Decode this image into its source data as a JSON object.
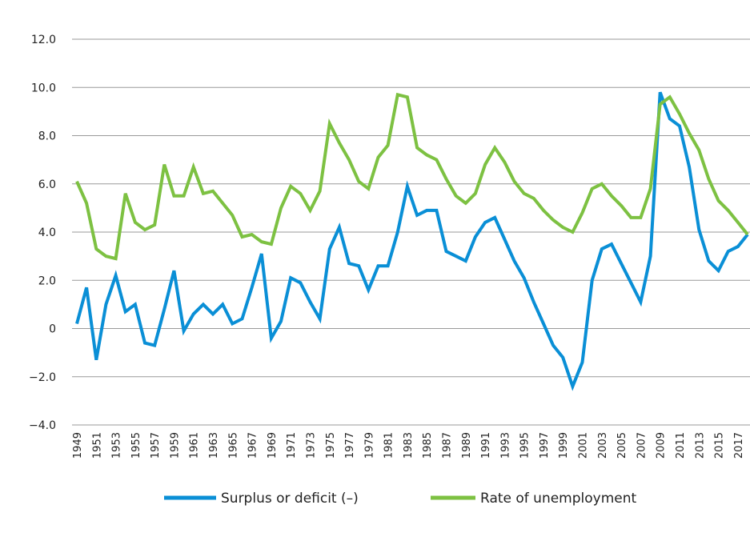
{
  "chart_data": {
    "type": "line",
    "title": "",
    "xlabel": "",
    "ylabel": "",
    "ylim": [
      -4,
      12
    ],
    "yticks": [
      "12.0",
      "10.0",
      "8.0",
      "6.0",
      "4.0",
      "2.0",
      "0",
      "−2.0",
      "−4.0"
    ],
    "ytick_values": [
      12,
      10,
      8,
      6,
      4,
      2,
      0,
      -2,
      -4
    ],
    "grid": true,
    "legend": "bottom",
    "x": [
      1949,
      1950,
      1951,
      1952,
      1953,
      1954,
      1955,
      1956,
      1957,
      1958,
      1959,
      1960,
      1961,
      1962,
      1963,
      1964,
      1965,
      1966,
      1967,
      1968,
      1969,
      1970,
      1971,
      1972,
      1973,
      1974,
      1975,
      1976,
      1977,
      1978,
      1979,
      1980,
      1981,
      1982,
      1983,
      1984,
      1985,
      1986,
      1987,
      1988,
      1989,
      1990,
      1991,
      1992,
      1993,
      1994,
      1995,
      1996,
      1997,
      1998,
      1999,
      2000,
      2001,
      2002,
      2003,
      2004,
      2005,
      2006,
      2007,
      2008,
      2009,
      2010,
      2011,
      2012,
      2013,
      2014,
      2015,
      2016,
      2017,
      2018
    ],
    "xtick_labels": [
      "1949",
      "1951",
      "1953",
      "1955",
      "1957",
      "1959",
      "1961",
      "1963",
      "1965",
      "1967",
      "1969",
      "1971",
      "1973",
      "1975",
      "1977",
      "1979",
      "1981",
      "1983",
      "1985",
      "1987",
      "1989",
      "1991",
      "1993",
      "1995",
      "1997",
      "1999",
      "2001",
      "2003",
      "2005",
      "2007",
      "2009",
      "2011",
      "2013",
      "2015",
      "2017"
    ],
    "series": [
      {
        "name": "Surplus or deficit (–)",
        "color": "#0a8fd6",
        "values": [
          0.2,
          1.7,
          -1.3,
          1.0,
          2.2,
          0.7,
          1.0,
          -0.6,
          -0.7,
          0.8,
          2.4,
          -0.1,
          0.6,
          1.0,
          0.6,
          1.0,
          0.2,
          0.4,
          1.7,
          3.1,
          -0.4,
          0.3,
          2.1,
          1.9,
          1.1,
          0.4,
          3.3,
          4.2,
          2.7,
          2.6,
          1.6,
          2.6,
          2.6,
          4.0,
          5.9,
          4.7,
          4.9,
          4.9,
          3.2,
          3.0,
          2.8,
          3.8,
          4.4,
          4.6,
          3.7,
          2.8,
          2.1,
          1.1,
          0.2,
          -0.7,
          -1.2,
          -2.4,
          -1.4,
          2.0,
          3.3,
          3.5,
          2.7,
          1.9,
          1.1,
          3.0,
          9.8,
          8.7,
          8.4,
          6.7,
          4.1,
          2.8,
          2.4,
          3.2,
          3.4,
          3.9
        ]
      },
      {
        "name": "Rate of unemployment",
        "color": "#7dc142",
        "values": [
          6.1,
          5.2,
          3.3,
          3.0,
          2.9,
          5.6,
          4.4,
          4.1,
          4.3,
          6.8,
          5.5,
          5.5,
          6.7,
          5.6,
          5.7,
          5.2,
          4.7,
          3.8,
          3.9,
          3.6,
          3.5,
          5.0,
          5.9,
          5.6,
          4.9,
          5.7,
          8.5,
          7.7,
          7.0,
          6.1,
          5.8,
          7.1,
          7.6,
          9.7,
          9.6,
          7.5,
          7.2,
          7.0,
          6.2,
          5.5,
          5.2,
          5.6,
          6.8,
          7.5,
          6.9,
          6.1,
          5.6,
          5.4,
          4.9,
          4.5,
          4.2,
          4.0,
          4.8,
          5.8,
          6.0,
          5.5,
          5.1,
          4.6,
          4.6,
          5.8,
          9.3,
          9.6,
          8.9,
          8.1,
          7.4,
          6.2,
          5.3,
          4.9,
          4.4,
          3.9
        ]
      }
    ]
  }
}
